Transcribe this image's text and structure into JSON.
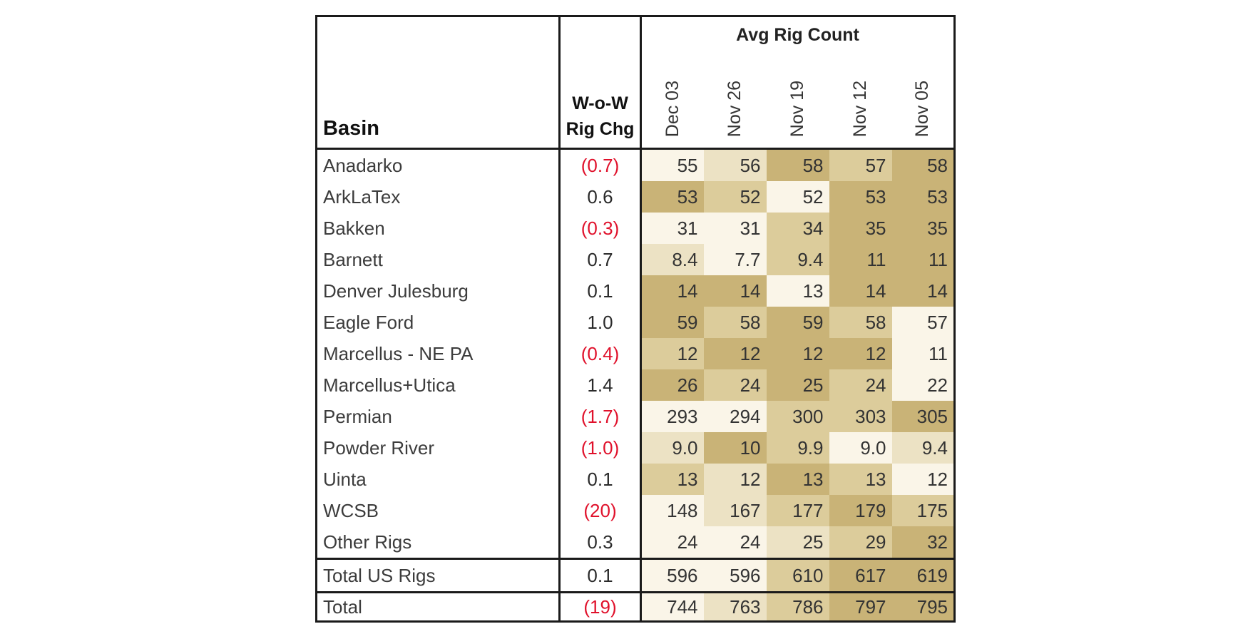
{
  "table": {
    "header": {
      "basin_label": "Basin",
      "wow_label_line1": "W-o-W",
      "wow_label_line2": "Rig Chg",
      "avg_title": "Avg Rig Count",
      "dates": [
        "Dec 03",
        "Nov 26",
        "Nov 19",
        "Nov 12",
        "Nov 05"
      ]
    },
    "rows": [
      {
        "basin": "Anadarko",
        "wow": "(0.7)",
        "neg": true,
        "values": [
          "55",
          "56",
          "58",
          "57",
          "58"
        ]
      },
      {
        "basin": "ArkLaTex",
        "wow": "0.6",
        "neg": false,
        "values": [
          "53",
          "52",
          "52",
          "53",
          "53"
        ]
      },
      {
        "basin": "Bakken",
        "wow": "(0.3)",
        "neg": true,
        "values": [
          "31",
          "31",
          "34",
          "35",
          "35"
        ]
      },
      {
        "basin": "Barnett",
        "wow": "0.7",
        "neg": false,
        "values": [
          "8.4",
          "7.7",
          "9.4",
          "11",
          "11"
        ]
      },
      {
        "basin": "Denver Julesburg",
        "wow": "0.1",
        "neg": false,
        "values": [
          "14",
          "14",
          "13",
          "14",
          "14"
        ]
      },
      {
        "basin": "Eagle Ford",
        "wow": "1.0",
        "neg": false,
        "values": [
          "59",
          "58",
          "59",
          "58",
          "57"
        ]
      },
      {
        "basin": "Marcellus - NE PA",
        "wow": "(0.4)",
        "neg": true,
        "values": [
          "12",
          "12",
          "12",
          "12",
          "11"
        ]
      },
      {
        "basin": "Marcellus+Utica",
        "wow": "1.4",
        "neg": false,
        "values": [
          "26",
          "24",
          "25",
          "24",
          "22"
        ]
      },
      {
        "basin": "Permian",
        "wow": "(1.7)",
        "neg": true,
        "values": [
          "293",
          "294",
          "300",
          "303",
          "305"
        ]
      },
      {
        "basin": "Powder River",
        "wow": "(1.0)",
        "neg": true,
        "values": [
          "9.0",
          "10",
          "9.9",
          "9.0",
          "9.4"
        ]
      },
      {
        "basin": "Uinta",
        "wow": "0.1",
        "neg": false,
        "values": [
          "13",
          "12",
          "13",
          "13",
          "12"
        ]
      },
      {
        "basin": "WCSB",
        "wow": "(20)",
        "neg": true,
        "values": [
          "148",
          "167",
          "177",
          "179",
          "175"
        ]
      },
      {
        "basin": "Other Rigs",
        "wow": "0.3",
        "neg": false,
        "values": [
          "24",
          "24",
          "25",
          "29",
          "32"
        ]
      },
      {
        "basin": "Total US Rigs",
        "wow": "0.1",
        "neg": false,
        "values": [
          "596",
          "596",
          "610",
          "617",
          "619"
        ]
      },
      {
        "basin": "Total",
        "wow": "(19)",
        "neg": true,
        "values": [
          "744",
          "763",
          "786",
          "797",
          "795"
        ]
      }
    ],
    "heat_colors": [
      "#faf5e8",
      "#ece2c4",
      "#dccc9b",
      "#c9b377"
    ],
    "heat_levels": [
      [
        0,
        1,
        3,
        2,
        3
      ],
      [
        3,
        2,
        0,
        3,
        3
      ],
      [
        0,
        0,
        2,
        3,
        3
      ],
      [
        1,
        0,
        2,
        3,
        3
      ],
      [
        3,
        3,
        0,
        3,
        3
      ],
      [
        3,
        2,
        3,
        2,
        0
      ],
      [
        2,
        3,
        3,
        3,
        0
      ],
      [
        3,
        2,
        3,
        2,
        0
      ],
      [
        0,
        0,
        2,
        2,
        3
      ],
      [
        1,
        3,
        2,
        0,
        1
      ],
      [
        2,
        1,
        3,
        2,
        0
      ],
      [
        0,
        1,
        2,
        3,
        2
      ],
      [
        0,
        0,
        1,
        2,
        3
      ],
      [
        0,
        0,
        2,
        3,
        3
      ],
      [
        0,
        1,
        2,
        3,
        3
      ]
    ]
  }
}
